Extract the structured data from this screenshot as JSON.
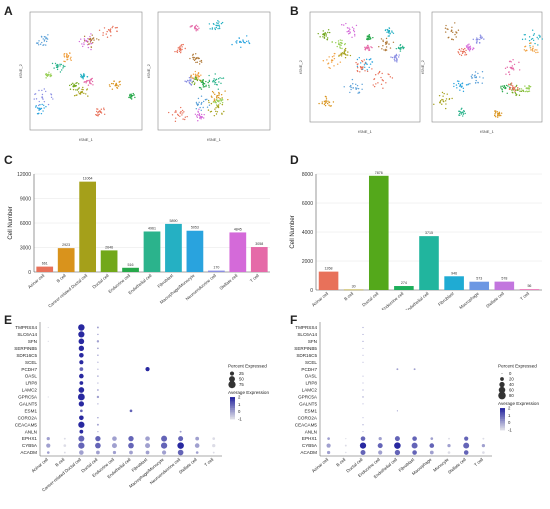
{
  "panels": {
    "a": "A",
    "b": "B",
    "c": "C",
    "d": "D",
    "e": "E",
    "f": "F"
  },
  "tsne": {
    "xlabel": "tSNE_1",
    "ylabel": "tSNE_2"
  },
  "chart_data": [
    {
      "id": "C",
      "type": "bar",
      "ylabel": "Cell Number",
      "ylim": [
        0,
        12000
      ],
      "yticks": [
        "0",
        "3000",
        "6000",
        "9000",
        "12000"
      ],
      "categories": [
        "Acinar cell",
        "B cell",
        "Cancer-related Ductal cell",
        "Ductal cell",
        "Endocrine cell",
        "Endothelial cell",
        "Fibroblast",
        "Macrophage/Monocyte",
        "Neuroendocrine cell",
        "Stellate cell",
        "T cell"
      ],
      "values": [
        661,
        2923,
        11064,
        2646,
        516,
        4961,
        5890,
        5053,
        170,
        4845,
        3058
      ],
      "colors": [
        "#e8715a",
        "#d9931c",
        "#a5a01a",
        "#72a81a",
        "#26a84a",
        "#2bb38c",
        "#25b0c3",
        "#29a3de",
        "#8b8fe3",
        "#d46ad9",
        "#e56aa8"
      ]
    },
    {
      "id": "D",
      "type": "bar",
      "ylabel": "Cell Number",
      "ylim": [
        0,
        8000
      ],
      "yticks": [
        "0",
        "2000",
        "4000",
        "6000",
        "8000"
      ],
      "categories": [
        "Acinar cell",
        "B cell",
        "Ductal cell",
        "Endocrine cell",
        "Endothelial cell",
        "Fibroblast",
        "Macrophage",
        "Stellate cell",
        "T cell"
      ],
      "values": [
        1268,
        30,
        7876,
        274,
        3715,
        946,
        573,
        578,
        56
      ],
      "colors": [
        "#e8715a",
        "#b9a10f",
        "#54a81b",
        "#1dae5a",
        "#21b59e",
        "#1fabd3",
        "#6c97e3",
        "#c276de",
        "#e56ab0"
      ]
    },
    {
      "id": "E",
      "type": "dotplot",
      "genes": [
        "TMPRSS4",
        "SLC6A14",
        "SFN",
        "SERPINB5",
        "SDR16C5",
        "SCEL",
        "PCDH7",
        "OASL",
        "LRP8",
        "LAMC2",
        "GPRC5A",
        "GALNT5",
        "ESM1",
        "CORO2A",
        "CEACAM5",
        "ANLN",
        "EPHX1",
        "CYB5A",
        "ACADM"
      ],
      "cell_types": [
        "Acinar cell",
        "B cell",
        "Cancer-related Ductal cell",
        "Ductal cell",
        "Endocrine cell",
        "Endothelial cell",
        "Fibroblast",
        "Macrophage/Monocyte",
        "Neuroendocrine cell",
        "Stellate cell",
        "T cell"
      ],
      "legend_size_title": "Percent Expressed",
      "legend_size_values": [
        "25",
        "50",
        "75"
      ],
      "legend_color_title": "Average Expression",
      "legend_color_values": [
        "2",
        "1",
        "0",
        "-1"
      ],
      "pct": [
        [
          2,
          0,
          60,
          5,
          0,
          0,
          0,
          0,
          0,
          0,
          0
        ],
        [
          0,
          0,
          55,
          3,
          0,
          0,
          0,
          0,
          0,
          0,
          0
        ],
        [
          2,
          0,
          45,
          8,
          0,
          0,
          0,
          0,
          0,
          0,
          0
        ],
        [
          0,
          0,
          40,
          4,
          0,
          0,
          0,
          0,
          0,
          0,
          0
        ],
        [
          0,
          0,
          30,
          3,
          0,
          0,
          0,
          0,
          0,
          0,
          0
        ],
        [
          0,
          0,
          25,
          2,
          0,
          0,
          0,
          0,
          0,
          0,
          0
        ],
        [
          0,
          0,
          20,
          2,
          0,
          0,
          25,
          0,
          0,
          0,
          0
        ],
        [
          0,
          0,
          30,
          3,
          0,
          0,
          0,
          0,
          0,
          0,
          0
        ],
        [
          0,
          0,
          20,
          2,
          0,
          0,
          0,
          0,
          0,
          0,
          0
        ],
        [
          0,
          0,
          45,
          4,
          0,
          0,
          0,
          0,
          0,
          0,
          0
        ],
        [
          2,
          0,
          65,
          8,
          0,
          0,
          0,
          0,
          0,
          0,
          0
        ],
        [
          0,
          0,
          40,
          2,
          0,
          0,
          0,
          0,
          0,
          0,
          0
        ],
        [
          0,
          0,
          10,
          0,
          0,
          10,
          0,
          0,
          0,
          0,
          0
        ],
        [
          0,
          0,
          30,
          3,
          0,
          0,
          0,
          0,
          0,
          0,
          0
        ],
        [
          0,
          0,
          55,
          5,
          0,
          0,
          0,
          0,
          0,
          0,
          0
        ],
        [
          0,
          0,
          20,
          2,
          0,
          0,
          0,
          0,
          5,
          0,
          0
        ],
        [
          15,
          5,
          50,
          40,
          30,
          40,
          30,
          50,
          35,
          20,
          10
        ],
        [
          25,
          10,
          55,
          45,
          35,
          45,
          35,
          55,
          60,
          30,
          15
        ],
        [
          10,
          5,
          30,
          20,
          15,
          20,
          20,
          25,
          45,
          10,
          5
        ]
      ],
      "avg": [
        [
          -1,
          -1,
          2,
          0,
          -1,
          -1,
          -1,
          -1,
          -1,
          -1,
          -1
        ],
        [
          -1,
          -1,
          2,
          0,
          -1,
          -1,
          -1,
          -1,
          -1,
          -1,
          -1
        ],
        [
          -1,
          -1,
          2,
          0,
          -1,
          -1,
          -1,
          -1,
          -1,
          -1,
          -1
        ],
        [
          -1,
          -1,
          2,
          0,
          -1,
          -1,
          -1,
          -1,
          -1,
          -1,
          -1
        ],
        [
          -1,
          -1,
          2,
          0,
          -1,
          -1,
          -1,
          -1,
          -1,
          -1,
          -1
        ],
        [
          -1,
          -1,
          2,
          0,
          -1,
          -1,
          -1,
          -1,
          -1,
          -1,
          -1
        ],
        [
          -1,
          -1,
          1,
          0,
          -1,
          -1,
          2,
          -1,
          -1,
          -1,
          -1
        ],
        [
          -1,
          -1,
          2,
          0,
          -1,
          -1,
          -1,
          -1,
          -1,
          -1,
          -1
        ],
        [
          -1,
          -1,
          2,
          0,
          -1,
          -1,
          -1,
          -1,
          -1,
          -1,
          -1
        ],
        [
          -1,
          -1,
          2,
          0,
          -1,
          -1,
          -1,
          -1,
          -1,
          -1,
          -1
        ],
        [
          -1,
          -1,
          2,
          0,
          -1,
          -1,
          -1,
          -1,
          -1,
          -1,
          -1
        ],
        [
          -1,
          -1,
          2,
          0,
          -1,
          -1,
          -1,
          -1,
          -1,
          -1,
          -1
        ],
        [
          -1,
          -1,
          1,
          -1,
          -1,
          1,
          -1,
          -1,
          -1,
          -1,
          -1
        ],
        [
          -1,
          -1,
          2,
          0,
          -1,
          -1,
          -1,
          -1,
          -1,
          -1,
          -1
        ],
        [
          -1,
          -1,
          2,
          0,
          -1,
          -1,
          -1,
          -1,
          -1,
          -1,
          -1
        ],
        [
          -1,
          -1,
          2,
          0,
          -1,
          -1,
          -1,
          -1,
          0,
          -1,
          -1
        ],
        [
          0,
          -1,
          1,
          1,
          0,
          1,
          0,
          1,
          1,
          0,
          -1
        ],
        [
          0,
          -1,
          1,
          1,
          0,
          1,
          0,
          1,
          2,
          0,
          -1
        ],
        [
          0,
          -1,
          0,
          0,
          0,
          0,
          0,
          0,
          1,
          0,
          -1
        ]
      ]
    },
    {
      "id": "F",
      "type": "dotplot",
      "genes": [
        "TMPRSS4",
        "SLC6A14",
        "SFN",
        "SERPINB5",
        "SDR16C5",
        "SCEL",
        "PCDH7",
        "OASL",
        "LRP8",
        "LAMC2",
        "GPRC5A",
        "GALNT5",
        "ESM1",
        "CORO2A",
        "CEACAM5",
        "ANLN",
        "EPHX1",
        "CYB5A",
        "ACADM"
      ],
      "cell_types": [
        "Acinar cell",
        "B cell",
        "Ductal cell",
        "Endocrine cell",
        "Endothelial cell",
        "Fibroblast",
        "Macrophage",
        "Monocyte",
        "Stellate cell",
        "T cell"
      ],
      "legend_size_title": "Percent Expressed",
      "legend_size_values": [
        "0",
        "20",
        "40",
        "60",
        "80"
      ],
      "legend_color_title": "Average Expression",
      "legend_color_values": [
        "2",
        "1",
        "0",
        "-1"
      ],
      "pct": [
        [
          0,
          0,
          2,
          0,
          0,
          0,
          0,
          0,
          0,
          0
        ],
        [
          0,
          0,
          2,
          0,
          0,
          0,
          0,
          0,
          0,
          0
        ],
        [
          0,
          0,
          2,
          0,
          0,
          0,
          0,
          0,
          0,
          0
        ],
        [
          0,
          0,
          1,
          0,
          0,
          0,
          0,
          0,
          0,
          0
        ],
        [
          0,
          0,
          1,
          0,
          0,
          0,
          0,
          0,
          0,
          0
        ],
        [
          0,
          0,
          1,
          0,
          0,
          0,
          0,
          0,
          0,
          0
        ],
        [
          0,
          0,
          0,
          0,
          5,
          5,
          0,
          0,
          0,
          0
        ],
        [
          0,
          0,
          1,
          0,
          0,
          0,
          0,
          0,
          0,
          0
        ],
        [
          0,
          0,
          1,
          0,
          0,
          0,
          0,
          0,
          0,
          0
        ],
        [
          0,
          0,
          2,
          0,
          0,
          0,
          0,
          0,
          0,
          0
        ],
        [
          0,
          0,
          3,
          0,
          0,
          0,
          0,
          0,
          0,
          0
        ],
        [
          0,
          0,
          1,
          0,
          0,
          0,
          0,
          0,
          0,
          0
        ],
        [
          0,
          0,
          0,
          0,
          2,
          0,
          0,
          0,
          0,
          0
        ],
        [
          0,
          0,
          1,
          0,
          0,
          0,
          0,
          0,
          0,
          0
        ],
        [
          0,
          0,
          2,
          0,
          0,
          0,
          0,
          0,
          0,
          0
        ],
        [
          0,
          0,
          1,
          0,
          0,
          0,
          0,
          0,
          0,
          0
        ],
        [
          10,
          2,
          30,
          15,
          35,
          30,
          10,
          5,
          25,
          5
        ],
        [
          25,
          5,
          55,
          35,
          60,
          50,
          30,
          15,
          50,
          15
        ],
        [
          15,
          3,
          35,
          25,
          40,
          30,
          20,
          10,
          30,
          10
        ]
      ],
      "avg": [
        [
          -1,
          -1,
          0,
          -1,
          -1,
          -1,
          -1,
          -1,
          -1,
          -1
        ],
        [
          -1,
          -1,
          0,
          -1,
          -1,
          -1,
          -1,
          -1,
          -1,
          -1
        ],
        [
          -1,
          -1,
          0,
          -1,
          -1,
          -1,
          -1,
          -1,
          -1,
          -1
        ],
        [
          -1,
          -1,
          0,
          -1,
          -1,
          -1,
          -1,
          -1,
          -1,
          -1
        ],
        [
          -1,
          -1,
          0,
          -1,
          -1,
          -1,
          -1,
          -1,
          -1,
          -1
        ],
        [
          -1,
          -1,
          0,
          -1,
          -1,
          -1,
          -1,
          -1,
          -1,
          -1
        ],
        [
          -1,
          -1,
          -1,
          -1,
          0,
          0,
          -1,
          -1,
          -1,
          -1
        ],
        [
          -1,
          -1,
          0,
          -1,
          -1,
          -1,
          -1,
          -1,
          -1,
          -1
        ],
        [
          -1,
          -1,
          0,
          -1,
          -1,
          -1,
          -1,
          -1,
          -1,
          -1
        ],
        [
          -1,
          -1,
          0,
          -1,
          -1,
          -1,
          -1,
          -1,
          -1,
          -1
        ],
        [
          -1,
          -1,
          0,
          -1,
          -1,
          -1,
          -1,
          -1,
          -1,
          -1
        ],
        [
          -1,
          -1,
          0,
          -1,
          -1,
          -1,
          -1,
          -1,
          -1,
          -1
        ],
        [
          -1,
          -1,
          -1,
          -1,
          0,
          -1,
          -1,
          -1,
          -1,
          -1
        ],
        [
          -1,
          -1,
          0,
          -1,
          -1,
          -1,
          -1,
          -1,
          -1,
          -1
        ],
        [
          -1,
          -1,
          0,
          -1,
          -1,
          -1,
          -1,
          -1,
          -1,
          -1
        ],
        [
          -1,
          -1,
          0,
          -1,
          -1,
          -1,
          -1,
          -1,
          -1,
          -1
        ],
        [
          0,
          -1,
          1,
          0,
          1,
          1,
          0,
          -1,
          1,
          -1
        ],
        [
          0,
          -1,
          2,
          1,
          2,
          1,
          1,
          0,
          1,
          0
        ],
        [
          0,
          -1,
          1,
          0,
          1,
          1,
          0,
          -1,
          1,
          -1
        ]
      ]
    }
  ]
}
